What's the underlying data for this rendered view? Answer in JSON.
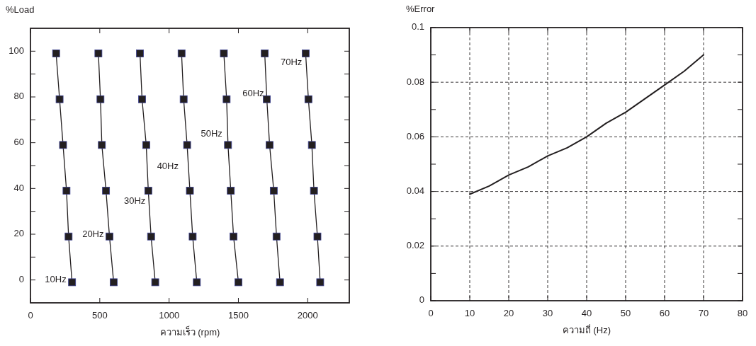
{
  "chart_data": [
    {
      "type": "line",
      "ylabel": "%Load",
      "xlabel": "ความเร็ว (rpm)",
      "xlim": [
        0,
        2300
      ],
      "ylim": [
        -10,
        110
      ],
      "xticks": [
        0,
        500,
        1000,
        1500,
        2000
      ],
      "yticks": [
        0,
        {
          "value": 10,
          "label": null
        },
        20,
        {
          "value": 30,
          "label": null
        },
        40,
        {
          "value": 50,
          "label": null
        },
        60,
        {
          "value": 70,
          "label": null
        },
        80,
        {
          "value": 90,
          "label": null
        },
        100
      ],
      "grid": false,
      "marker": "square",
      "line_style": "solid",
      "series": [
        {
          "name": "10Hz",
          "color": "#231f20",
          "x": [
            185,
            210,
            235,
            260,
            275,
            300
          ],
          "values": [
            99,
            79,
            59,
            39,
            19,
            -1
          ]
        },
        {
          "name": "20Hz",
          "color": "#231f20",
          "x": [
            490,
            505,
            515,
            545,
            570,
            600
          ],
          "values": [
            99,
            79,
            59,
            39,
            19,
            -1
          ]
        },
        {
          "name": "30Hz",
          "color": "#231f20",
          "x": [
            790,
            805,
            835,
            850,
            870,
            900
          ],
          "values": [
            99,
            79,
            59,
            39,
            19,
            -1
          ]
        },
        {
          "name": "40Hz",
          "color": "#231f20",
          "x": [
            1090,
            1105,
            1130,
            1150,
            1170,
            1200
          ],
          "values": [
            99,
            79,
            59,
            39,
            19,
            -1
          ]
        },
        {
          "name": "50Hz",
          "color": "#231f20",
          "x": [
            1395,
            1415,
            1425,
            1445,
            1465,
            1500
          ],
          "values": [
            99,
            79,
            59,
            39,
            19,
            -1
          ]
        },
        {
          "name": "60Hz",
          "color": "#231f20",
          "x": [
            1690,
            1705,
            1725,
            1755,
            1775,
            1800
          ],
          "values": [
            99,
            79,
            59,
            39,
            19,
            -1
          ]
        },
        {
          "name": "70Hz",
          "color": "#231f20",
          "x": [
            1985,
            2005,
            2030,
            2045,
            2070,
            2090
          ],
          "values": [
            99,
            79,
            59,
            39,
            19,
            -1
          ]
        }
      ]
    },
    {
      "type": "line",
      "ylabel": "%Error",
      "xlabel": "ความถี่ (Hz)",
      "xlim": [
        0,
        80
      ],
      "ylim": [
        0,
        0.1
      ],
      "xticks": [
        0,
        10,
        20,
        30,
        40,
        50,
        60,
        70,
        80
      ],
      "yticks": [
        0,
        {
          "value": 0.01,
          "label": null
        },
        0.02,
        {
          "value": 0.03,
          "label": null
        },
        0.04,
        {
          "value": 0.05,
          "label": null
        },
        0.06,
        {
          "value": 0.07,
          "label": null
        },
        0.08,
        {
          "value": 0.09,
          "label": null
        },
        0.1
      ],
      "grid": true,
      "marker": "none",
      "line_style": "solid",
      "series": [
        {
          "color": "#231f20",
          "x": [
            10,
            15,
            20,
            25,
            30,
            35,
            40,
            45,
            50,
            55,
            60,
            65,
            70
          ],
          "values": [
            0.039,
            0.042,
            0.046,
            0.049,
            0.053,
            0.056,
            0.06,
            0.065,
            0.069,
            0.074,
            0.079,
            0.084,
            0.09
          ]
        }
      ]
    }
  ]
}
